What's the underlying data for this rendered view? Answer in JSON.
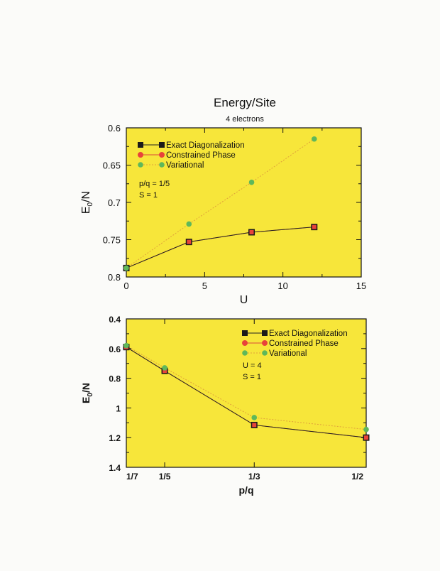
{
  "page": {
    "title": "Energy/Site",
    "subtitle": "4 electrons"
  },
  "colors": {
    "plot_bg": "#f7e63a",
    "exact": "#1a1a1a",
    "constrained": "#e8433a",
    "variational": "#5fb85a",
    "line_exact": "#222222",
    "line_constrained": "#d84a3a",
    "line_variational": "#e0a23a"
  },
  "chart_data": [
    {
      "type": "line",
      "xlabel": "U",
      "xlim": [
        0,
        15
      ],
      "ylim": [
        0.6,
        0.8
      ],
      "y_inverted": true,
      "x_ticks": [
        0,
        5,
        10,
        15
      ],
      "x_tick_labels": [
        "0",
        "5",
        "10",
        "15"
      ],
      "y_ticks": [
        0.6,
        0.65,
        0.7,
        0.75,
        0.8
      ],
      "y_tick_labels": [
        "0.6",
        "0.65",
        "0.7",
        "0.75",
        "0.8"
      ],
      "legend_placement": "top-left",
      "annotations": [
        "p/q = 1/5",
        "S = 1"
      ],
      "series": [
        {
          "name": "Exact Diagonalization",
          "x": [
            0,
            4,
            8,
            12
          ],
          "values": [
            0.788,
            0.753,
            0.74,
            0.733
          ]
        },
        {
          "name": "Constrained Phase",
          "x": [
            0,
            4,
            8,
            12
          ],
          "values": [
            0.788,
            0.753,
            0.74,
            0.733
          ]
        },
        {
          "name": "Variational",
          "x": [
            0,
            4,
            8,
            12
          ],
          "values": [
            0.788,
            0.729,
            0.673,
            0.615
          ]
        }
      ]
    },
    {
      "type": "line",
      "xlabel": "p/q",
      "xlim": [
        0.1429,
        0.5
      ],
      "ylim": [
        0.4,
        1.4
      ],
      "y_inverted": true,
      "x_ticks": [
        0.142857,
        0.2,
        0.333333,
        0.5
      ],
      "x_tick_labels": [
        "1/7",
        "1/5",
        "1/3",
        "1/2"
      ],
      "y_ticks": [
        0.4,
        0.6,
        0.8,
        1.0,
        1.2,
        1.4
      ],
      "y_tick_labels": [
        "0.4",
        "0.6",
        "0.8",
        "1",
        "1.2",
        "1.4"
      ],
      "legend_placement": "top-right",
      "annotations": [
        "U = 4",
        "S = 1"
      ],
      "series": [
        {
          "name": "Exact Diagonalization",
          "x": [
            0.142857,
            0.2,
            0.333333,
            0.5
          ],
          "values": [
            0.59,
            0.75,
            1.115,
            1.2
          ]
        },
        {
          "name": "Constrained Phase",
          "x": [
            0.142857,
            0.2,
            0.333333,
            0.5
          ],
          "values": [
            0.59,
            0.75,
            1.115,
            1.2
          ]
        },
        {
          "name": "Variational",
          "x": [
            0.142857,
            0.2,
            0.333333,
            0.5
          ],
          "values": [
            0.58,
            0.73,
            1.065,
            1.145
          ]
        }
      ]
    }
  ]
}
